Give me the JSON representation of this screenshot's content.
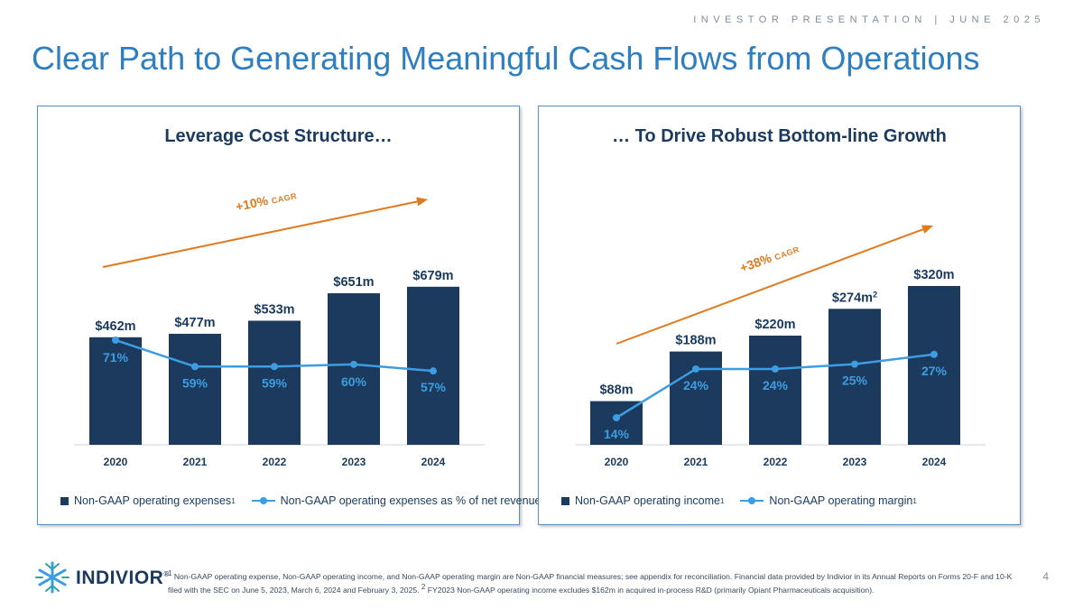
{
  "header": {
    "top_right": "INVESTOR PRESENTATION | JUNE 2025",
    "title": "Clear Path to Generating Meaningful Cash Flows from Operations"
  },
  "colors": {
    "bar": "#1b3a5e",
    "line": "#3d9de0",
    "arrow": "#e07a1f",
    "title": "#2d7fc1"
  },
  "chart_data": [
    {
      "type": "bar",
      "title": "Leverage Cost Structure…",
      "categories": [
        "2020",
        "2021",
        "2022",
        "2023",
        "2024"
      ],
      "series": [
        {
          "name": "Non-GAAP operating expenses",
          "values": [
            462,
            477,
            533,
            651,
            679
          ],
          "labels": [
            "$462m",
            "$477m",
            "$533m",
            "$651m",
            "$679m"
          ]
        },
        {
          "name": "Non-GAAP operating expenses as % of net revenue",
          "values": [
            71,
            59,
            59,
            60,
            57
          ],
          "labels": [
            "71%",
            "59%",
            "59%",
            "60%",
            "57%"
          ]
        }
      ],
      "legend": {
        "bar": "Non-GAAP operating expenses",
        "line": "Non-GAAP operating expenses as % of net revenue",
        "sup": "1"
      },
      "cagr": {
        "value": "+10%",
        "unit": "CAGR"
      }
    },
    {
      "type": "bar",
      "title": "… To Drive Robust Bottom-line Growth",
      "categories": [
        "2020",
        "2021",
        "2022",
        "2023",
        "2024"
      ],
      "series": [
        {
          "name": "Non-GAAP operating income",
          "values": [
            88,
            188,
            220,
            274,
            320
          ],
          "labels": [
            "$88m",
            "$188m",
            "$220m",
            "$274m",
            "$320m"
          ]
        },
        {
          "name": "Non-GAAP operating margin",
          "values": [
            14,
            24,
            24,
            25,
            27
          ],
          "labels": [
            "14%",
            "24%",
            "24%",
            "25%",
            "27%"
          ]
        }
      ],
      "legend": {
        "bar": "Non-GAAP operating income",
        "line": "Non-GAAP operating margin",
        "sup": "1"
      },
      "cagr": {
        "value": "+38%",
        "unit": "CAGR"
      },
      "bar_label_sup": {
        "index": 3,
        "text": "2"
      }
    }
  ],
  "footer": {
    "logo_text": "INDIVIOR",
    "logo_mark": "®",
    "footnote": [
      {
        "sup": "1",
        "text": " Non-GAAP operating expense, Non-GAAP operating income, and Non-GAAP operating margin are Non-GAAP financial measures; see appendix for reconciliation. Financial data provided by Indivior in its Annual Reports on Forms 20-F and 10-K filed with the SEC on June 5, 2023, March 6, 2024 and February 3, 2025. "
      },
      {
        "sup": "2",
        "text": " FY2023 Non-GAAP operating income excludes $162m in acquired in-process R&D (primarily Opiant Pharmaceuticals acquisition)."
      }
    ],
    "page_number": "4"
  }
}
